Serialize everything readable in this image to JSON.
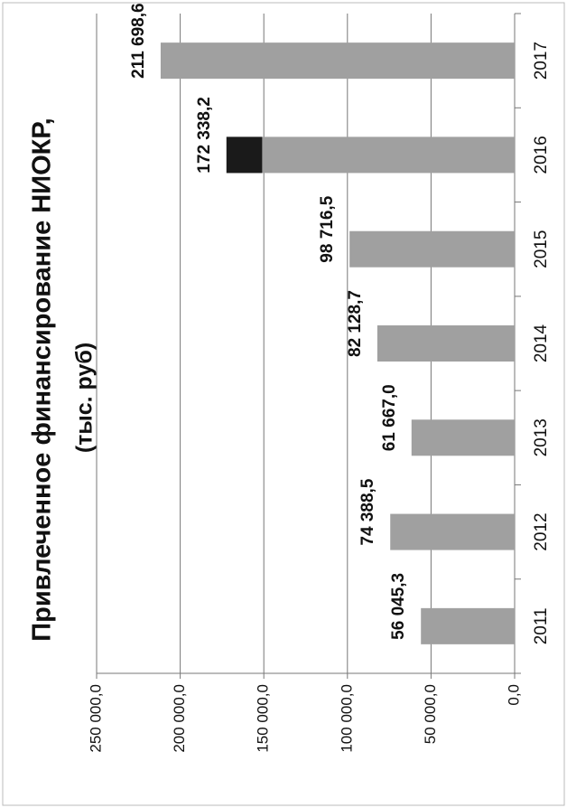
{
  "chart_data": {
    "type": "bar",
    "orientation": "rotated",
    "title": "Привлеченное финансирование НИОКР,",
    "subtitle": "(тыс. руб)",
    "categories": [
      "2011",
      "2012",
      "2013",
      "2014",
      "2015",
      "2016",
      "2017"
    ],
    "values": [
      56045.3,
      74388.5,
      61667.0,
      82128.7,
      98716.5,
      172338.2,
      211698.6
    ],
    "value_labels": [
      "56 045,3",
      "74 388,5",
      "61 667,0",
      "82 128,7",
      "98 716,5",
      "172 338,2",
      "211 698,6"
    ],
    "color": "#a0a0a0",
    "highlight": {
      "category": "2016",
      "from": 151000,
      "color": "#1a1a1a"
    },
    "ylim": [
      0,
      250000
    ],
    "yticks": [
      {
        "value": 0,
        "label": "0,0"
      },
      {
        "value": 50000,
        "label": "50 000,0"
      },
      {
        "value": 100000,
        "label": "100 000,0"
      },
      {
        "value": 150000,
        "label": "150 000,0"
      },
      {
        "value": 200000,
        "label": "200 000,0"
      },
      {
        "value": 250000,
        "label": "250 000,0"
      }
    ],
    "grid": true
  }
}
